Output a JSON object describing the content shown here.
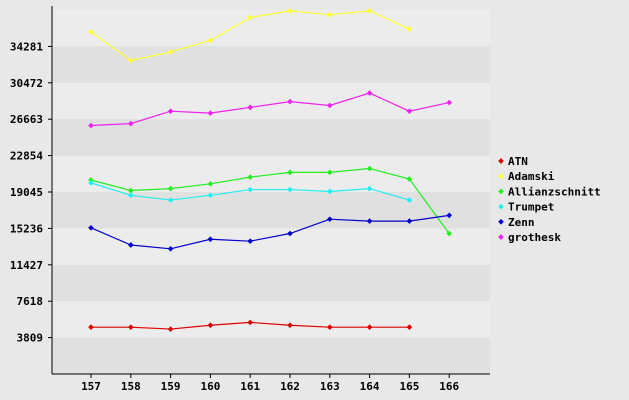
{
  "chart_data": {
    "type": "line",
    "title": "",
    "xlabel": "",
    "ylabel": "",
    "x": [
      "157",
      "158",
      "159",
      "160",
      "161",
      "162",
      "163",
      "164",
      "165",
      "166"
    ],
    "y_ticks": [
      "3809",
      "7618",
      "11427",
      "15236",
      "19045",
      "22854",
      "26663",
      "30472",
      "34281"
    ],
    "ylim": [
      0,
      38090
    ],
    "grid": true,
    "legend_position": "right",
    "band_colors": [
      "#e0e0e0",
      "#ececec"
    ],
    "series": [
      {
        "name": "ATN",
        "color": "#dd0000",
        "values": [
          4900,
          4900,
          4700,
          5100,
          5400,
          5100,
          4900,
          4900,
          4900,
          null
        ]
      },
      {
        "name": "Adamski",
        "color": "#ffff33",
        "values": [
          35800,
          32800,
          33700,
          34900,
          37300,
          38000,
          37600,
          38000,
          36100,
          null
        ]
      },
      {
        "name": "Allianzschnitt",
        "color": "#22ee22",
        "values": [
          20300,
          19200,
          19400,
          19900,
          20600,
          21100,
          21100,
          21500,
          20400,
          14700
        ]
      },
      {
        "name": "Trumpet",
        "color": "#22eeee",
        "values": [
          20000,
          18700,
          18200,
          18700,
          19300,
          19300,
          19100,
          19400,
          18200,
          null
        ]
      },
      {
        "name": "Zenn",
        "color": "#0000cc",
        "values": [
          15300,
          13500,
          13100,
          14100,
          13900,
          14700,
          16200,
          16000,
          16000,
          16600
        ]
      },
      {
        "name": "grothesk",
        "color": "#ee22ee",
        "values": [
          26000,
          26200,
          27500,
          27300,
          27900,
          28500,
          28100,
          29400,
          27500,
          28400
        ]
      }
    ]
  }
}
